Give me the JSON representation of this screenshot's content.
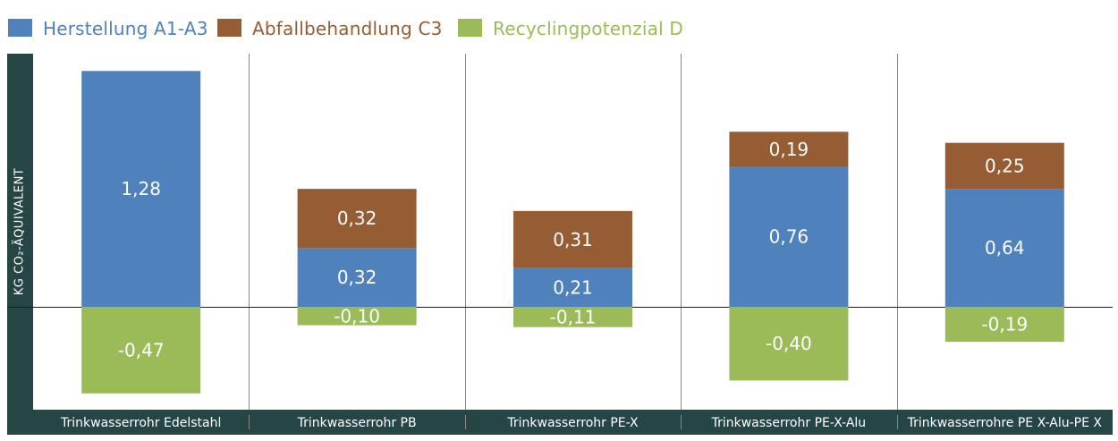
{
  "colors": {
    "herstellung": "#4f81bd",
    "abfall": "#965c33",
    "recycling": "#9bbb59",
    "frame": "#264545",
    "divider": "#888888",
    "axis_label_text": "#ffffff",
    "bar_label_text": "#ffffff"
  },
  "legend": [
    {
      "key": "herstellung",
      "label": "Herstellung A1-A3",
      "color": "#4f81bd"
    },
    {
      "key": "abfall",
      "label": "Abfallbehandlung C3",
      "color": "#965c33"
    },
    {
      "key": "recycling",
      "label": "Recyclingpotenzial D",
      "color": "#9bbb59"
    }
  ],
  "chart_data": {
    "type": "bar",
    "stacked": true,
    "ylabel": "KG CO₂-ÄQUIVALENT",
    "categories": [
      "Trinkwasserrohr Edelstahl",
      "Trinkwasserrohr PB",
      "Trinkwasserrohr PE-X",
      "Trinkwasserrohr PE-X-Alu",
      "Trinkwasserrohre PE X-Alu-PE X"
    ],
    "series": [
      {
        "name": "Herstellung A1-A3",
        "key": "herstellung",
        "values": [
          1.28,
          0.32,
          0.21,
          0.76,
          0.64
        ],
        "labels": [
          "1,28",
          "0,32",
          "0,21",
          "0,76",
          "0,64"
        ]
      },
      {
        "name": "Abfallbehandlung C3",
        "key": "abfall",
        "values": [
          0,
          0.32,
          0.31,
          0.19,
          0.25
        ],
        "labels": [
          "",
          "0,32",
          "0,31",
          "0,19",
          "0,25"
        ]
      },
      {
        "name": "Recyclingpotenzial D",
        "key": "recycling",
        "values": [
          -0.47,
          -0.1,
          -0.11,
          -0.4,
          -0.19
        ],
        "labels": [
          "-0,47",
          "-0,10",
          "-0,11",
          "-0,40",
          "-0,19"
        ]
      }
    ],
    "ylim": [
      -0.47,
      1.28
    ],
    "grid": false,
    "legend_position": "top-left"
  }
}
